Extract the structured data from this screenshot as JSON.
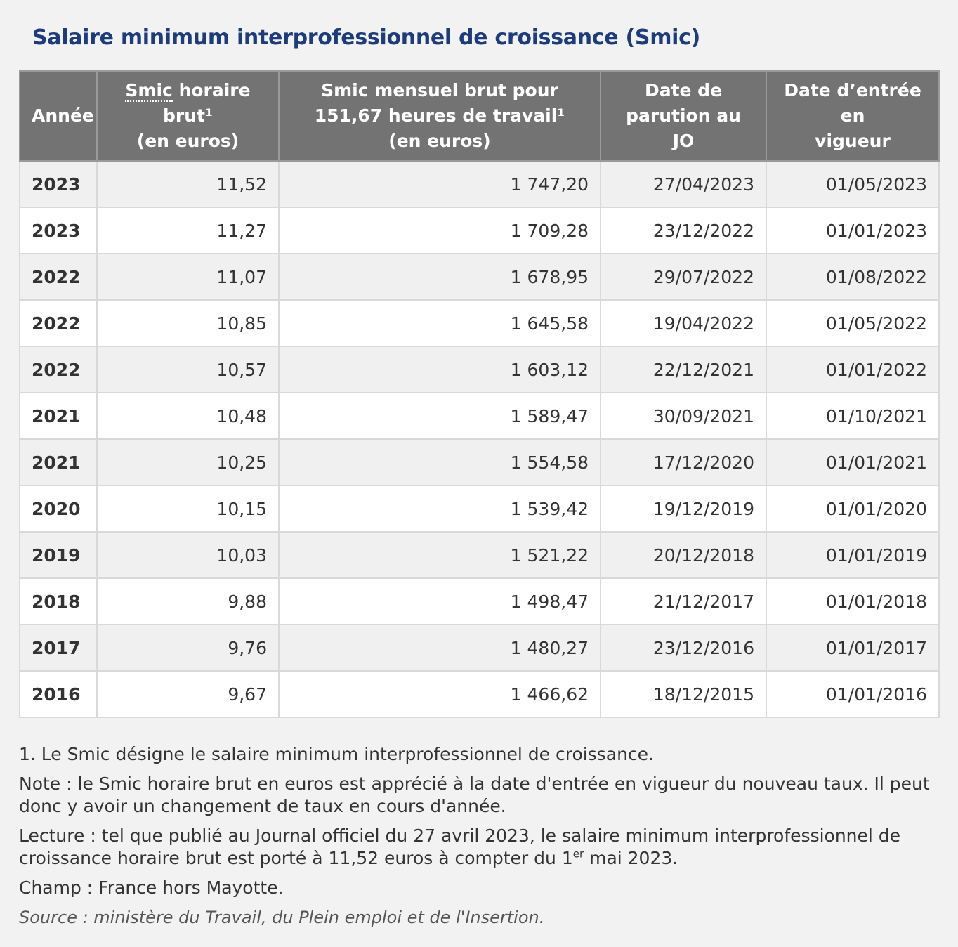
{
  "title": "Salaire minimum interprofessionnel de croissance (Smic)",
  "headers": {
    "year": "Année",
    "hourly_abbr": "Smic",
    "hourly_rest": " horaire brut¹",
    "hourly_line2": "(en euros)",
    "monthly_line1": "Smic mensuel brut pour",
    "monthly_line2": "151,67 heures de travail¹",
    "monthly_line3": "(en euros)",
    "pub_line1": "Date de",
    "pub_line2": "parution au JO",
    "eff_line1": "Date d’entrée en",
    "eff_line2": "vigueur"
  },
  "rows": [
    {
      "year": "2023",
      "hourly": "11,52",
      "monthly": "1 747,20",
      "pub": "27/04/2023",
      "eff": "01/05/2023"
    },
    {
      "year": "2023",
      "hourly": "11,27",
      "monthly": "1 709,28",
      "pub": "23/12/2022",
      "eff": "01/01/2023"
    },
    {
      "year": "2022",
      "hourly": "11,07",
      "monthly": "1 678,95",
      "pub": "29/07/2022",
      "eff": "01/08/2022"
    },
    {
      "year": "2022",
      "hourly": "10,85",
      "monthly": "1 645,58",
      "pub": "19/04/2022",
      "eff": "01/05/2022"
    },
    {
      "year": "2022",
      "hourly": "10,57",
      "monthly": "1 603,12",
      "pub": "22/12/2021",
      "eff": "01/01/2022"
    },
    {
      "year": "2021",
      "hourly": "10,48",
      "monthly": "1 589,47",
      "pub": "30/09/2021",
      "eff": "01/10/2021"
    },
    {
      "year": "2021",
      "hourly": "10,25",
      "monthly": "1 554,58",
      "pub": "17/12/2020",
      "eff": "01/01/2021"
    },
    {
      "year": "2020",
      "hourly": "10,15",
      "monthly": "1 539,42",
      "pub": "19/12/2019",
      "eff": "01/01/2020"
    },
    {
      "year": "2019",
      "hourly": "10,03",
      "monthly": "1 521,22",
      "pub": "20/12/2018",
      "eff": "01/01/2019"
    },
    {
      "year": "2018",
      "hourly": "9,88",
      "monthly": "1 498,47",
      "pub": "21/12/2017",
      "eff": "01/01/2018"
    },
    {
      "year": "2017",
      "hourly": "9,76",
      "monthly": "1 480,27",
      "pub": "23/12/2016",
      "eff": "01/01/2017"
    },
    {
      "year": "2016",
      "hourly": "9,67",
      "monthly": "1 466,62",
      "pub": "18/12/2015",
      "eff": "01/01/2016"
    }
  ],
  "footnote": "1. Le Smic désigne le salaire minimum interprofessionnel de croissance.",
  "note": "Note : le Smic horaire brut en euros est apprécié à la date d'entrée en vigueur du nouveau taux. Il peut donc y avoir un changement de taux en cours d'année.",
  "lecture_pre": "Lecture : tel que publié au Journal officiel du 27 avril 2023, le salaire minimum interprofessionnel de croissance horaire brut est porté à 11,52 euros à compter du 1",
  "lecture_sup": "er",
  "lecture_post": " mai 2023.",
  "champ": "Champ : France hors Mayotte.",
  "source": "Source : ministère du Travail, du Plein emploi et de l'Insertion."
}
